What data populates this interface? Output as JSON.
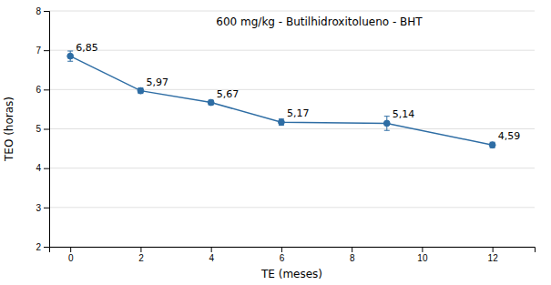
{
  "chart_data": {
    "type": "line",
    "x": [
      0,
      2,
      4,
      6,
      9,
      12
    ],
    "values": [
      6.85,
      5.97,
      5.67,
      5.17,
      5.14,
      4.59
    ],
    "error": [
      0.13,
      0.07,
      0.06,
      0.08,
      0.18,
      0.07
    ],
    "value_labels": [
      "6,85",
      "5,97",
      "5,67",
      "5,17",
      "5,14",
      "4,59"
    ],
    "data_labels": true,
    "xlabel": "TE (meses)",
    "ylabel": "TEO (horas)",
    "annotation": "600 mg/kg - Butilhidroxitolueno - BHT",
    "xlim": [
      -0.6,
      13.2
    ],
    "ylim": [
      2.0,
      8.0
    ],
    "xticks": [
      0,
      2,
      4,
      6,
      8,
      10,
      12
    ],
    "yticks": [
      2,
      3,
      4,
      5,
      6,
      7,
      8
    ],
    "color": "#2E6DA4",
    "marker": "circle",
    "grid": true
  }
}
